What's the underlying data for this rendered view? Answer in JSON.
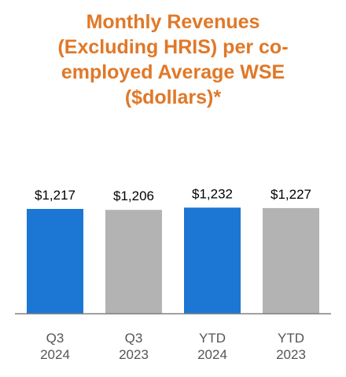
{
  "title_lines": [
    "Monthly Revenues",
    "(Excluding HRIS) per co-",
    "employed Average WSE",
    "($dollars)*"
  ],
  "colors": {
    "title": "#E07828",
    "highlight_bar": "#1B76D4",
    "comparison_bar": "#B3B3B3",
    "axis": "#7F7F7F"
  },
  "chart_data": {
    "type": "bar",
    "title": "Monthly Revenues (Excluding HRIS) per co-employed Average WSE ($dollars)*",
    "categories": [
      [
        "Q3",
        "2024"
      ],
      [
        "Q3",
        "2023"
      ],
      [
        "YTD",
        "2024"
      ],
      [
        "YTD",
        "2023"
      ]
    ],
    "values": [
      1217,
      1206,
      1232,
      1227
    ],
    "value_labels": [
      "$1,217",
      "$1,206",
      "$1,232",
      "$1,227"
    ],
    "bar_colors": [
      "#1B76D4",
      "#B3B3B3",
      "#1B76D4",
      "#B3B3B3"
    ],
    "xlabel": "",
    "ylabel": "",
    "ylim": [
      0,
      1650
    ],
    "grid": false,
    "legend": "none"
  }
}
